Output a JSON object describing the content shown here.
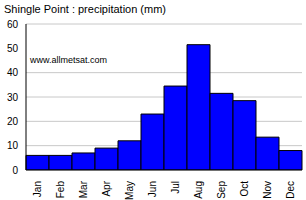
{
  "chart_data": {
    "type": "bar",
    "title": "Shingle Point : precipitation (mm)",
    "annotation": "www.allmetsat.com",
    "categories": [
      "Jan",
      "Feb",
      "Mar",
      "Apr",
      "May",
      "Jun",
      "Jul",
      "Aug",
      "Sep",
      "Oct",
      "Nov",
      "Dec"
    ],
    "values": [
      6,
      6,
      7,
      9,
      12,
      23,
      34.5,
      51.5,
      31.5,
      28.5,
      13.5,
      8
    ],
    "color": "#0000ff",
    "ylim": [
      0,
      60
    ],
    "yticks": [
      0,
      10,
      20,
      30,
      40,
      50,
      60
    ],
    "grid": true
  }
}
